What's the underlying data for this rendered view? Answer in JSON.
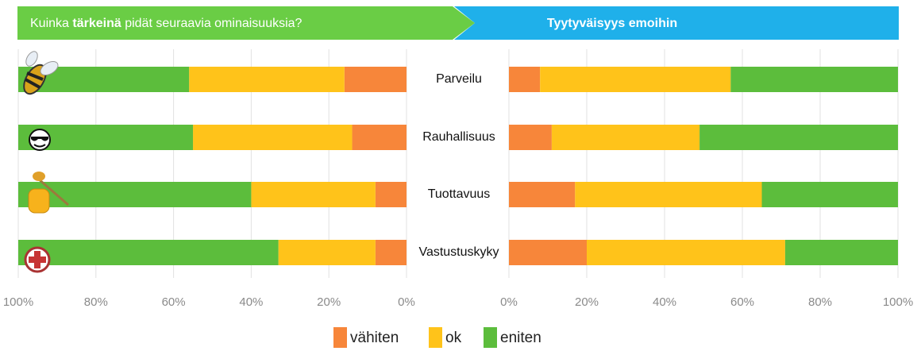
{
  "chart_data": [
    {
      "type": "bar",
      "orientation": "horizontal",
      "stacked": true,
      "title": [
        "Kuinka ",
        "tärkeinä",
        " pidät seuraavia ominaisuuksia?"
      ],
      "categories": [
        "Parveilu",
        "Rauhallisuus",
        "Tuottavuus",
        "Vastustuskyky"
      ],
      "series": [
        {
          "name": "vähiten",
          "color": "#f7863a",
          "values": [
            16,
            14,
            8,
            8
          ]
        },
        {
          "name": "ok",
          "color": "#ffc31a",
          "values": [
            40,
            41,
            32,
            25
          ]
        },
        {
          "name": "eniten",
          "color": "#5cbd3c",
          "values": [
            44,
            45,
            60,
            67
          ]
        }
      ],
      "xlim": [
        100,
        0
      ],
      "xticks": [
        {
          "value": 100,
          "label": "100%"
        },
        {
          "value": 80,
          "label": "80%"
        },
        {
          "value": 60,
          "label": "60%"
        },
        {
          "value": 40,
          "label": "40%"
        },
        {
          "value": 20,
          "label": "20%"
        },
        {
          "value": 0,
          "label": "0%"
        }
      ],
      "grid": true
    },
    {
      "type": "bar",
      "orientation": "horizontal",
      "stacked": true,
      "title": "Tyytyväisyys emoihin",
      "series": [
        {
          "color": "#f7863a",
          "values": [
            8,
            11,
            17,
            20
          ]
        },
        {
          "color": "#ffc31a",
          "values": [
            49,
            38,
            48,
            51
          ]
        },
        {
          "color": "#5cbd3c",
          "values": [
            43,
            51,
            35,
            29
          ]
        }
      ],
      "xlim": [
        0,
        100
      ],
      "xticks": [
        {
          "value": 0,
          "label": "0%"
        },
        {
          "value": 20,
          "label": "20%"
        },
        {
          "value": 40,
          "label": "40%"
        },
        {
          "value": 60,
          "label": "60%"
        },
        {
          "value": 80,
          "label": "80%"
        },
        {
          "value": 100,
          "label": "100%"
        }
      ],
      "grid": true
    }
  ]
}
